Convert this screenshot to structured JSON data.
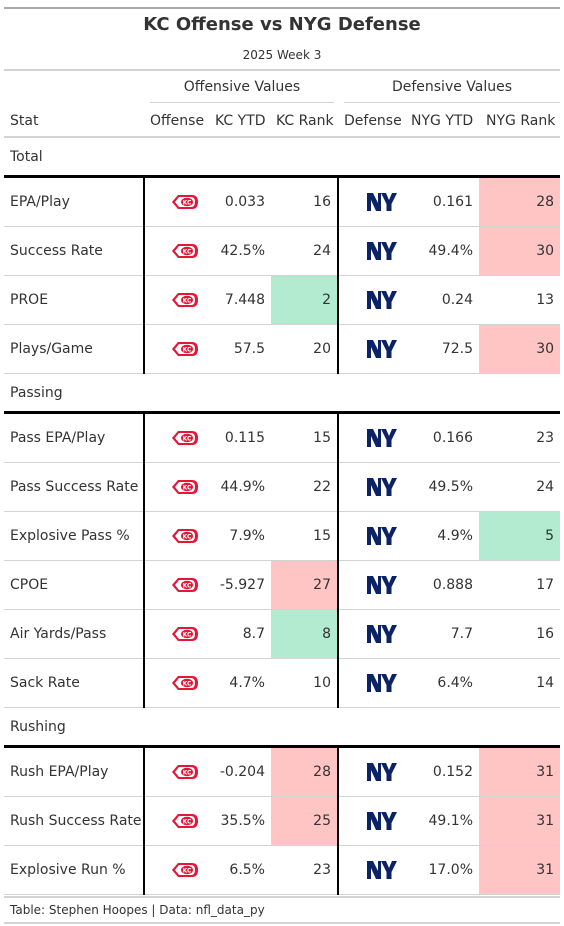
{
  "header": {
    "title": "KC Offense vs NYG Defense",
    "subtitle": "2025 Week 3"
  },
  "spanners": {
    "offense": "Offensive Values",
    "defense": "Defensive Values"
  },
  "columns": {
    "stat": "Stat",
    "offense": "Offense",
    "kc_ytd": "KC YTD",
    "kc_rank": "KC Rank",
    "defense": "Defense",
    "nyg_ytd": "NYG YTD",
    "nyg_rank": "NYG Rank"
  },
  "colors": {
    "good": "#b2ebcf",
    "bad": "#ffc4c4",
    "kc_red": "#e31837",
    "nyg_blue": "#0b2265"
  },
  "icons": {
    "offense": "kc-arrowhead-icon",
    "defense": "ny-giants-logo-icon"
  },
  "groups": [
    {
      "label": "Total",
      "rows": [
        {
          "stat": "EPA/Play",
          "kc_ytd": "0.033",
          "kc_rank": "16",
          "kc_flag": "",
          "nyg_ytd": "0.161",
          "nyg_rank": "28",
          "nyg_flag": "bad"
        },
        {
          "stat": "Success Rate",
          "kc_ytd": "42.5%",
          "kc_rank": "24",
          "kc_flag": "",
          "nyg_ytd": "49.4%",
          "nyg_rank": "30",
          "nyg_flag": "bad"
        },
        {
          "stat": "PROE",
          "kc_ytd": "7.448",
          "kc_rank": "2",
          "kc_flag": "good",
          "nyg_ytd": "0.24",
          "nyg_rank": "13",
          "nyg_flag": ""
        },
        {
          "stat": "Plays/Game",
          "kc_ytd": "57.5",
          "kc_rank": "20",
          "kc_flag": "",
          "nyg_ytd": "72.5",
          "nyg_rank": "30",
          "nyg_flag": "bad"
        }
      ]
    },
    {
      "label": "Passing",
      "rows": [
        {
          "stat": "Pass EPA/Play",
          "kc_ytd": "0.115",
          "kc_rank": "15",
          "kc_flag": "",
          "nyg_ytd": "0.166",
          "nyg_rank": "23",
          "nyg_flag": ""
        },
        {
          "stat": "Pass Success Rate",
          "kc_ytd": "44.9%",
          "kc_rank": "22",
          "kc_flag": "",
          "nyg_ytd": "49.5%",
          "nyg_rank": "24",
          "nyg_flag": ""
        },
        {
          "stat": "Explosive Pass %",
          "kc_ytd": "7.9%",
          "kc_rank": "15",
          "kc_flag": "",
          "nyg_ytd": "4.9%",
          "nyg_rank": "5",
          "nyg_flag": "good"
        },
        {
          "stat": "CPOE",
          "kc_ytd": "-5.927",
          "kc_rank": "27",
          "kc_flag": "bad",
          "nyg_ytd": "0.888",
          "nyg_rank": "17",
          "nyg_flag": ""
        },
        {
          "stat": "Air Yards/Pass",
          "kc_ytd": "8.7",
          "kc_rank": "8",
          "kc_flag": "good",
          "nyg_ytd": "7.7",
          "nyg_rank": "16",
          "nyg_flag": ""
        },
        {
          "stat": "Sack Rate",
          "kc_ytd": "4.7%",
          "kc_rank": "10",
          "kc_flag": "",
          "nyg_ytd": "6.4%",
          "nyg_rank": "14",
          "nyg_flag": ""
        }
      ]
    },
    {
      "label": "Rushing",
      "rows": [
        {
          "stat": "Rush EPA/Play",
          "kc_ytd": "-0.204",
          "kc_rank": "28",
          "kc_flag": "bad",
          "nyg_ytd": "0.152",
          "nyg_rank": "31",
          "nyg_flag": "bad"
        },
        {
          "stat": "Rush Success Rate",
          "kc_ytd": "35.5%",
          "kc_rank": "25",
          "kc_flag": "bad",
          "nyg_ytd": "49.1%",
          "nyg_rank": "31",
          "nyg_flag": "bad"
        },
        {
          "stat": "Explosive Run %",
          "kc_ytd": "6.5%",
          "kc_rank": "23",
          "kc_flag": "",
          "nyg_ytd": "17.0%",
          "nyg_rank": "31",
          "nyg_flag": "bad"
        }
      ]
    }
  ],
  "footer": {
    "source": "Table: Stephen Hoopes | Data: nfl_data_py"
  }
}
